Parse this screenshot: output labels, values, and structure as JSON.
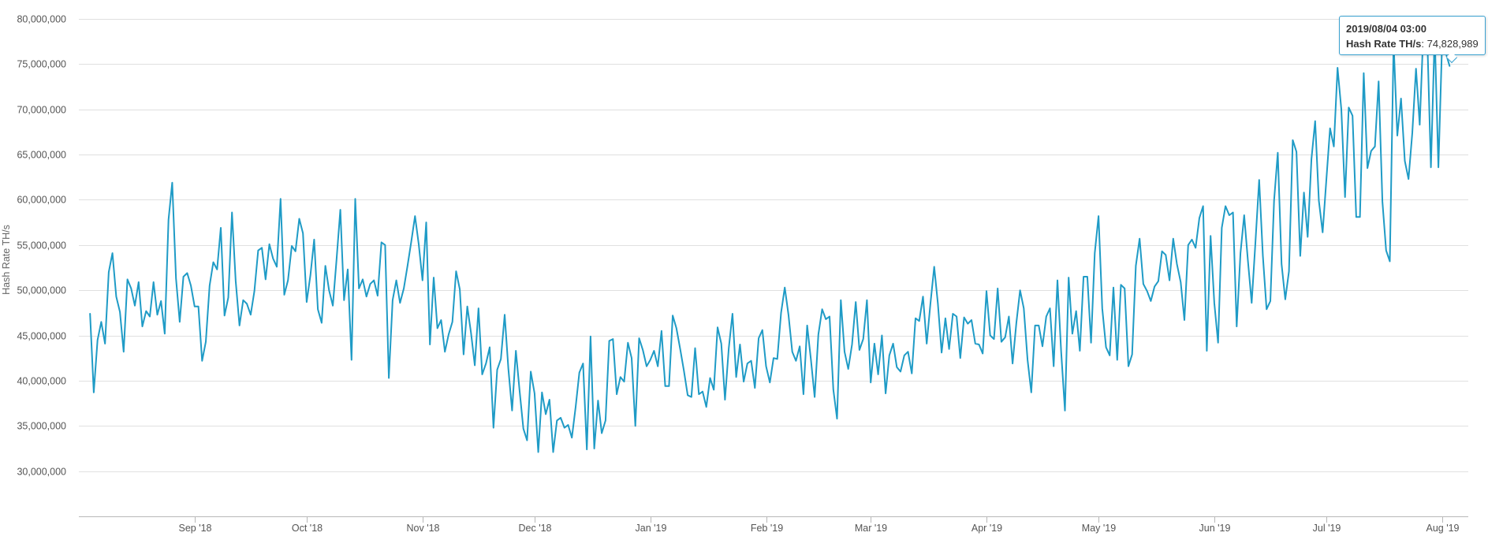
{
  "chart_data": {
    "type": "line",
    "title": "",
    "xlabel": "",
    "ylabel": "Hash Rate TH/s",
    "ylim": [
      25000000,
      80000000
    ],
    "yticks": [
      30000000,
      35000000,
      40000000,
      45000000,
      50000000,
      55000000,
      60000000,
      65000000,
      70000000,
      75000000,
      80000000
    ],
    "ytick_labels": [
      "30,000,000",
      "35,000,000",
      "40,000,000",
      "45,000,000",
      "50,000,000",
      "55,000,000",
      "60,000,000",
      "65,000,000",
      "70,000,000",
      "75,000,000",
      "80,000,000"
    ],
    "xlim": [
      "2018-08-01",
      "2019-08-08"
    ],
    "xticks": [
      "2018-09-01",
      "2018-10-01",
      "2018-11-01",
      "2018-12-01",
      "2019-01-01",
      "2019-02-01",
      "2019-03-01",
      "2019-04-01",
      "2019-05-01",
      "2019-06-01",
      "2019-07-01",
      "2019-08-01"
    ],
    "xtick_labels": [
      "Sep '18",
      "Oct '18",
      "Nov '18",
      "Dec '18",
      "Jan '19",
      "Feb '19",
      "Mar '19",
      "Apr '19",
      "May '19",
      "Jun '19",
      "Jul '19",
      "Aug '19"
    ],
    "grid": true,
    "legend": "none",
    "line_color": "#1f9bc6",
    "start_date": "2018-08-04",
    "series": [
      {
        "values": [
          47400000,
          38700000,
          44500000,
          46500000,
          44100000,
          52000000,
          54100000,
          49300000,
          47600000,
          43200000,
          51200000,
          50200000,
          48300000,
          50900000,
          46000000,
          47700000,
          47100000,
          50900000,
          47300000,
          48800000,
          45200000,
          57800000,
          61900000,
          51300000,
          46500000,
          51500000,
          51900000,
          50500000,
          48200000,
          48200000,
          42200000,
          44300000,
          50500000,
          53100000,
          52300000,
          56900000,
          47200000,
          49200000,
          58600000,
          51000000,
          46100000,
          48900000,
          48500000,
          47300000,
          49900000,
          54400000,
          54700000,
          51200000,
          55100000,
          53500000,
          52600000,
          60100000,
          49500000,
          51100000,
          54900000,
          54300000,
          57900000,
          56300000,
          48700000,
          51700000,
          55600000,
          47900000,
          46400000,
          52700000,
          50000000,
          48300000,
          53400000,
          58900000,
          48900000,
          52300000,
          42300000,
          60100000,
          50200000,
          51200000,
          49300000,
          50700000,
          51100000,
          49400000,
          55300000,
          55000000,
          40300000,
          48900000,
          51100000,
          48600000,
          50200000,
          52700000,
          55400000,
          58200000,
          55100000,
          51100000,
          57500000,
          44000000,
          51400000,
          45800000,
          46700000,
          43200000,
          45100000,
          46500000,
          52100000,
          50100000,
          42900000,
          48200000,
          45300000,
          41700000,
          48000000,
          40700000,
          41900000,
          43700000,
          34800000,
          41200000,
          42400000,
          47300000,
          41300000,
          36700000,
          43300000,
          38900000,
          34700000,
          33400000,
          41000000,
          38600000,
          32100000,
          38700000,
          36300000,
          37900000,
          32100000,
          35600000,
          35900000,
          34800000,
          35100000,
          33700000,
          37100000,
          40900000,
          41900000,
          32400000,
          44900000,
          32500000,
          37800000,
          34200000,
          35600000,
          44400000,
          44600000,
          38500000,
          40400000,
          39900000,
          44200000,
          42500000,
          35000000,
          44700000,
          43400000,
          41600000,
          42300000,
          43300000,
          41600000,
          45500000,
          39400000,
          39400000,
          47200000,
          45800000,
          43500000,
          41100000,
          38400000,
          38200000,
          43600000,
          38500000,
          38800000,
          37100000,
          40300000,
          39000000,
          45900000,
          44100000,
          37900000,
          43600000,
          47400000,
          40400000,
          44000000,
          39900000,
          41900000,
          42200000,
          39200000,
          44700000,
          45600000,
          41600000,
          39800000,
          42500000,
          42400000,
          47500000,
          50300000,
          47300000,
          43200000,
          42200000,
          43800000,
          38500000,
          46100000,
          42300000,
          38200000,
          45100000,
          47900000,
          46800000,
          47100000,
          39000000,
          35800000,
          48900000,
          43200000,
          41300000,
          44000000,
          48700000,
          43400000,
          44600000,
          48900000,
          39800000,
          44100000,
          40700000,
          45000000,
          38600000,
          42800000,
          44100000,
          41500000,
          41000000,
          42800000,
          43200000,
          40800000,
          46900000,
          46600000,
          49300000,
          44100000,
          48500000,
          52600000,
          48500000,
          43100000,
          46900000,
          43500000,
          47400000,
          47100000,
          42500000,
          47000000,
          46300000,
          46700000,
          44100000,
          44000000,
          43000000,
          49900000,
          45000000,
          44600000,
          50200000,
          44300000,
          44800000,
          47100000,
          41900000,
          46400000,
          50000000,
          48000000,
          42300000,
          38700000,
          46100000,
          46100000,
          43800000,
          47100000,
          48000000,
          41600000,
          51100000,
          43200000,
          36700000,
          51400000,
          45200000,
          47700000,
          43300000,
          51500000,
          51500000,
          44200000,
          54100000,
          58200000,
          48000000,
          43700000,
          42800000,
          50300000,
          42300000,
          50600000,
          50200000,
          41600000,
          42900000,
          52700000,
          55700000,
          50700000,
          49900000,
          48800000,
          50400000,
          51000000,
          54300000,
          53900000,
          51100000,
          55700000,
          52900000,
          50900000,
          46700000,
          55000000,
          55600000,
          54700000,
          58000000,
          59300000,
          43300000,
          56000000,
          48600000,
          44200000,
          56900000,
          59300000,
          58300000,
          58600000,
          46000000,
          54100000,
          58300000,
          53300000,
          48600000,
          55200000,
          62200000,
          53800000,
          47900000,
          48800000,
          59900000,
          65200000,
          52900000,
          49000000,
          52100000,
          66600000,
          65300000,
          53800000,
          60800000,
          55900000,
          64500000,
          68700000,
          59900000,
          56400000,
          62200000,
          67900000,
          65900000,
          74600000,
          70000000,
          60300000,
          70200000,
          69300000,
          58100000,
          58100000,
          74000000,
          63500000,
          65400000,
          65900000,
          73100000,
          59800000,
          54400000,
          53200000,
          77400000,
          67100000,
          71200000,
          64300000,
          62300000,
          67400000,
          74500000,
          68300000,
          79100000,
          78200000,
          63600000,
          78400000,
          63600000,
          77400000,
          76200000,
          74800000
        ]
      }
    ],
    "tooltip": {
      "date": "2019/08/04 03:00",
      "series_name": "Hash Rate TH/s",
      "value": "74,828,989"
    }
  }
}
